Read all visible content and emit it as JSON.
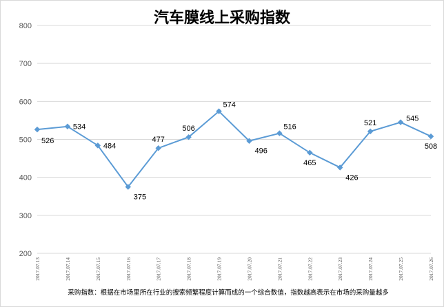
{
  "colors": {
    "line": "#5b9bd5",
    "grid": "#d9d9d9",
    "axis_text": "#595959",
    "label_text": "#000000"
  },
  "footnote": "采购指数：根据在市场里所在行业的搜索频繁程度计算而成的一个综合数值，指数越高表示在市场的采购量越多",
  "chart_data": {
    "type": "line",
    "title": "汽车膜线上采购指数",
    "xlabel": "",
    "ylabel": "",
    "categories": [
      "2017.07.13",
      "2017.07.14",
      "2017.07.15",
      "2017.07.16",
      "2017.07.17",
      "2017.07.18",
      "2017.07.19",
      "2017.07.20",
      "2017.07.21",
      "2017.07.22",
      "2017.07.23",
      "2017.07.24",
      "2017.07.25",
      "2017.07.26"
    ],
    "values": [
      526,
      534,
      484,
      375,
      477,
      506,
      574,
      496,
      516,
      465,
      426,
      521,
      545,
      508
    ],
    "ylim": [
      200,
      800
    ],
    "yticks": [
      200,
      300,
      400,
      500,
      600,
      700,
      800
    ],
    "grid": true,
    "legend": "none",
    "data_labels": true
  }
}
